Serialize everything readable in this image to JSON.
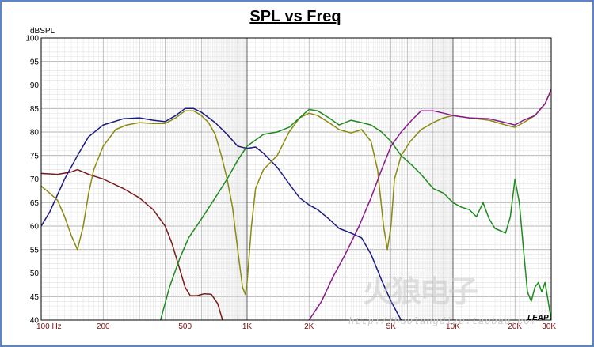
{
  "chart_data": {
    "type": "line",
    "title": "SPL vs Freq",
    "ylabel": "dBSPL",
    "xlabel": "",
    "x_scale": "log",
    "xlim": [
      100,
      30000
    ],
    "ylim": [
      40,
      100
    ],
    "grid": true,
    "yticks": [
      "100",
      "95",
      "90",
      "85",
      "80",
      "75",
      "70",
      "65",
      "60",
      "55",
      "50",
      "45",
      "40"
    ],
    "xtick_labels": [
      {
        "x": 100,
        "label": "100 Hz"
      },
      {
        "x": 200,
        "label": "200"
      },
      {
        "x": 500,
        "label": "500"
      },
      {
        "x": 1000,
        "label": "1K"
      },
      {
        "x": 2000,
        "label": "2K"
      },
      {
        "x": 5000,
        "label": "5K"
      },
      {
        "x": 10000,
        "label": "10K"
      },
      {
        "x": 20000,
        "label": "20K"
      },
      {
        "x": 30000,
        "label": "30K"
      }
    ],
    "series": [
      {
        "color": "#7a1a1a",
        "points": [
          [
            100,
            71.2
          ],
          [
            120,
            71.0
          ],
          [
            140,
            71.5
          ],
          [
            150,
            72.0
          ],
          [
            170,
            71.0
          ],
          [
            200,
            70.0
          ],
          [
            250,
            68.0
          ],
          [
            300,
            66.0
          ],
          [
            350,
            63.5
          ],
          [
            400,
            60.0
          ],
          [
            430,
            56.5
          ],
          [
            470,
            51.0
          ],
          [
            500,
            47.0
          ],
          [
            530,
            45.2
          ],
          [
            570,
            45.2
          ],
          [
            620,
            45.6
          ],
          [
            670,
            45.5
          ],
          [
            720,
            43.5
          ],
          [
            760,
            40.0
          ]
        ]
      },
      {
        "color": "#1a1a80",
        "points": [
          [
            100,
            60.0
          ],
          [
            110,
            63.0
          ],
          [
            130,
            70.0
          ],
          [
            150,
            75.0
          ],
          [
            170,
            79.0
          ],
          [
            200,
            81.5
          ],
          [
            250,
            82.8
          ],
          [
            300,
            83.0
          ],
          [
            350,
            82.5
          ],
          [
            400,
            82.2
          ],
          [
            450,
            83.5
          ],
          [
            500,
            85.0
          ],
          [
            550,
            85.0
          ],
          [
            600,
            84.2
          ],
          [
            700,
            82.0
          ],
          [
            800,
            79.5
          ],
          [
            900,
            77.0
          ],
          [
            1000,
            76.5
          ],
          [
            1100,
            76.8
          ],
          [
            1200,
            75.5
          ],
          [
            1400,
            72.5
          ],
          [
            1600,
            69.0
          ],
          [
            1800,
            66.0
          ],
          [
            2000,
            64.5
          ],
          [
            2200,
            63.5
          ],
          [
            2500,
            61.5
          ],
          [
            2800,
            59.5
          ],
          [
            3200,
            58.5
          ],
          [
            3600,
            57.5
          ],
          [
            4000,
            54.0
          ],
          [
            4500,
            48.5
          ],
          [
            5000,
            44.0
          ],
          [
            5600,
            40.0
          ]
        ]
      },
      {
        "color": "#8a8a10",
        "points": [
          [
            100,
            68.5
          ],
          [
            110,
            67.0
          ],
          [
            120,
            65.5
          ],
          [
            130,
            62.0
          ],
          [
            140,
            58.0
          ],
          [
            150,
            55.0
          ],
          [
            160,
            60.0
          ],
          [
            170,
            67.0
          ],
          [
            180,
            72.0
          ],
          [
            200,
            77.0
          ],
          [
            230,
            80.5
          ],
          [
            260,
            81.5
          ],
          [
            300,
            82.0
          ],
          [
            350,
            81.8
          ],
          [
            400,
            81.8
          ],
          [
            450,
            83.0
          ],
          [
            500,
            84.5
          ],
          [
            550,
            84.5
          ],
          [
            600,
            83.5
          ],
          [
            650,
            82.0
          ],
          [
            700,
            79.5
          ],
          [
            750,
            75.0
          ],
          [
            800,
            70.0
          ],
          [
            850,
            64.0
          ],
          [
            900,
            55.0
          ],
          [
            950,
            47.0
          ],
          [
            980,
            45.5
          ],
          [
            1000,
            48.0
          ],
          [
            1050,
            60.0
          ],
          [
            1100,
            68.0
          ],
          [
            1200,
            72.0
          ],
          [
            1400,
            75.0
          ],
          [
            1600,
            80.0
          ],
          [
            1800,
            83.0
          ],
          [
            2000,
            84.0
          ],
          [
            2200,
            83.5
          ],
          [
            2500,
            82.0
          ],
          [
            2800,
            80.5
          ],
          [
            3200,
            79.8
          ],
          [
            3600,
            80.5
          ],
          [
            4000,
            78.0
          ],
          [
            4300,
            72.0
          ],
          [
            4600,
            60.0
          ],
          [
            4800,
            55.0
          ],
          [
            5000,
            60.0
          ],
          [
            5200,
            70.0
          ],
          [
            5600,
            75.0
          ],
          [
            6200,
            78.0
          ],
          [
            7000,
            80.5
          ],
          [
            8000,
            82.0
          ],
          [
            9000,
            83.0
          ],
          [
            10000,
            83.5
          ],
          [
            12000,
            83.0
          ],
          [
            15000,
            82.5
          ],
          [
            18000,
            81.5
          ],
          [
            20000,
            81.0
          ],
          [
            22000,
            82.0
          ],
          [
            25000,
            83.5
          ],
          [
            28000,
            86.0
          ],
          [
            30000,
            89.0
          ]
        ]
      },
      {
        "color": "#1f8a1f",
        "points": [
          [
            380,
            40.0
          ],
          [
            420,
            47.0
          ],
          [
            470,
            53.0
          ],
          [
            520,
            57.5
          ],
          [
            600,
            61.5
          ],
          [
            700,
            66.0
          ],
          [
            800,
            70.0
          ],
          [
            900,
            74.0
          ],
          [
            1000,
            77.0
          ],
          [
            1200,
            79.5
          ],
          [
            1400,
            80.0
          ],
          [
            1600,
            81.0
          ],
          [
            1800,
            83.0
          ],
          [
            2000,
            84.8
          ],
          [
            2200,
            84.5
          ],
          [
            2500,
            83.0
          ],
          [
            2800,
            81.5
          ],
          [
            3200,
            82.5
          ],
          [
            3600,
            82.0
          ],
          [
            4000,
            81.5
          ],
          [
            4500,
            80.0
          ],
          [
            5000,
            78.0
          ],
          [
            5600,
            75.0
          ],
          [
            6300,
            73.0
          ],
          [
            7000,
            71.0
          ],
          [
            8000,
            68.0
          ],
          [
            9000,
            67.0
          ],
          [
            10000,
            65.0
          ],
          [
            11000,
            64.0
          ],
          [
            12000,
            63.5
          ],
          [
            13000,
            62.0
          ],
          [
            14000,
            65.0
          ],
          [
            15000,
            61.5
          ],
          [
            16000,
            59.5
          ],
          [
            17000,
            59.0
          ],
          [
            18000,
            58.5
          ],
          [
            19000,
            62.0
          ],
          [
            20000,
            70.0
          ],
          [
            21000,
            65.0
          ],
          [
            22000,
            55.0
          ],
          [
            23000,
            46.0
          ],
          [
            24000,
            44.0
          ],
          [
            25000,
            47.0
          ],
          [
            26000,
            48.0
          ],
          [
            27000,
            46.0
          ],
          [
            28000,
            48.0
          ],
          [
            29000,
            44.0
          ],
          [
            30000,
            40.0
          ]
        ]
      },
      {
        "color": "#8a1a8a",
        "points": [
          [
            2000,
            40.0
          ],
          [
            2300,
            44.0
          ],
          [
            2600,
            49.0
          ],
          [
            3000,
            54.0
          ],
          [
            3500,
            60.0
          ],
          [
            4000,
            66.0
          ],
          [
            4500,
            72.0
          ],
          [
            5000,
            77.0
          ],
          [
            5600,
            80.0
          ],
          [
            6300,
            82.5
          ],
          [
            7000,
            84.5
          ],
          [
            8000,
            84.5
          ],
          [
            9000,
            84.0
          ],
          [
            10000,
            83.5
          ],
          [
            12000,
            83.0
          ],
          [
            15000,
            82.8
          ],
          [
            18000,
            82.0
          ],
          [
            20000,
            81.5
          ],
          [
            22000,
            82.5
          ],
          [
            25000,
            83.5
          ],
          [
            28000,
            86.0
          ],
          [
            30000,
            89.0
          ]
        ]
      }
    ]
  },
  "watermark": {
    "brand": "火狼电子",
    "url": "http://huolangdizu.taobao.com",
    "logo_text": "LEAP"
  }
}
